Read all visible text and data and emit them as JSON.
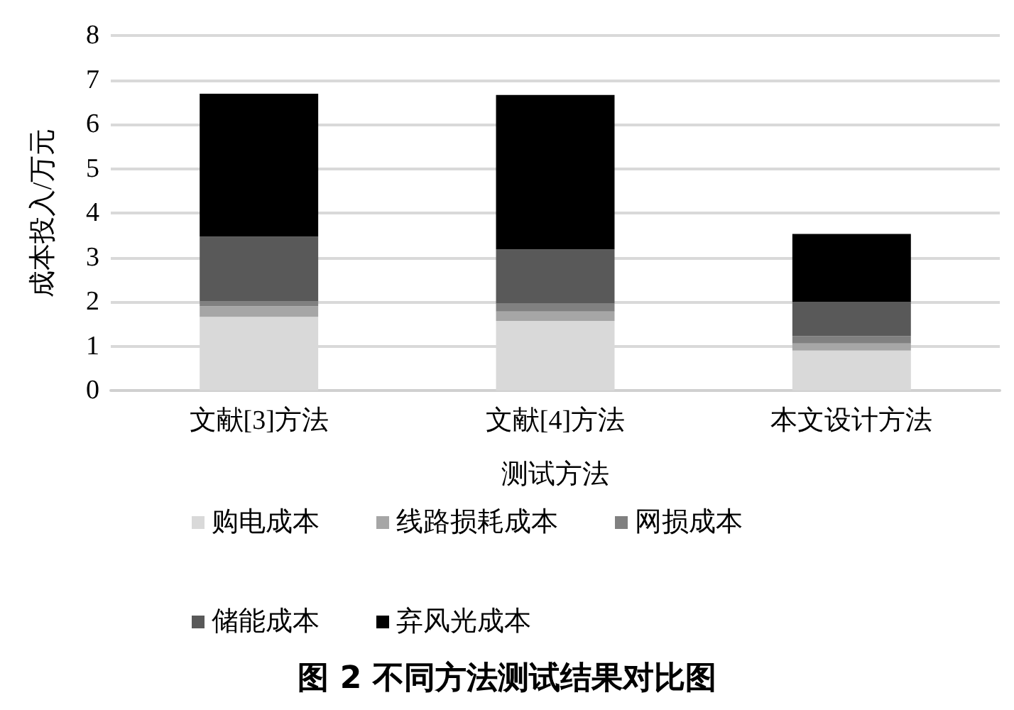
{
  "chart_data": {
    "type": "bar",
    "title": "图 2 不同方法测试结果对比图",
    "xlabel": "测试方法",
    "ylabel": "成本投入/万元",
    "categories": [
      "文献[3]方法",
      "文献[4]方法",
      "本文设计方法"
    ],
    "stacked": true,
    "series": [
      {
        "name": "购电成本",
        "color": "#d9d9d9",
        "values": [
          1.66,
          1.57,
          0.9
        ]
      },
      {
        "name": "线路损耗成本",
        "color": "#a6a6a6",
        "values": [
          0.24,
          0.21,
          0.16
        ]
      },
      {
        "name": "网损成本",
        "color": "#808080",
        "values": [
          0.11,
          0.19,
          0.17
        ]
      },
      {
        "name": "储能成本",
        "color": "#595959",
        "values": [
          1.46,
          1.21,
          0.77
        ]
      },
      {
        "name": "弃风光成本",
        "color": "#000000",
        "values": [
          3.22,
          3.48,
          1.53
        ]
      }
    ],
    "ylim": [
      0,
      8
    ],
    "yticks": [
      0,
      1,
      2,
      3,
      4,
      5,
      6,
      7,
      8
    ],
    "grid": "y",
    "legend": "bottom"
  }
}
